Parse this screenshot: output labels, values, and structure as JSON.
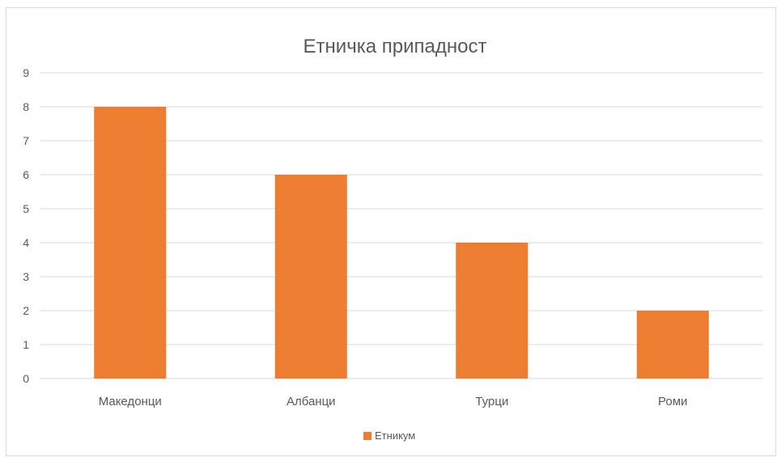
{
  "chart_data": {
    "type": "bar",
    "title": "Етничка припадност",
    "xlabel": "",
    "ylabel": "",
    "categories": [
      "Македонци",
      "Албанци",
      "Турци",
      "Роми"
    ],
    "series": [
      {
        "name": "Етникум",
        "values": [
          8,
          6,
          4,
          2
        ]
      }
    ],
    "ylim": [
      0,
      9
    ],
    "yticks": [
      "0",
      "1",
      "2",
      "3",
      "4",
      "5",
      "6",
      "7",
      "8",
      "9"
    ],
    "grid": true,
    "legend_position": "bottom",
    "colors": {
      "bar": "#ED7D31",
      "grid": "#D9D9D9",
      "text": "#595959",
      "border": "#D9D9D9"
    }
  }
}
